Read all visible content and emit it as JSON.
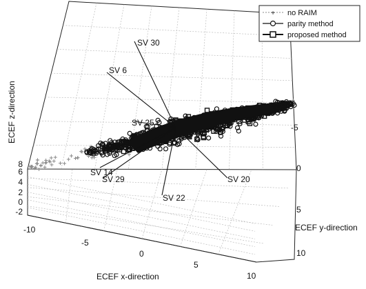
{
  "chart_data": {
    "type": "scatter",
    "projection": "3d",
    "title": "",
    "xlabel": "ECEF x-direction",
    "ylabel": "ECEF y-direction",
    "zlabel": "ECEF z-direction",
    "x_ticks": [
      "-10",
      "-5",
      "0",
      "5",
      "10"
    ],
    "y_ticks": [
      "-5",
      "0",
      "5",
      "10"
    ],
    "z_ticks": [
      "-2",
      "0",
      "2",
      "4",
      "6",
      "8"
    ],
    "xlim": [
      -12,
      12
    ],
    "ylim": [
      -8,
      11
    ],
    "zlim": [
      -2,
      9
    ],
    "grid": true,
    "legend_position": "top-right",
    "series": [
      {
        "name": "no RAIM",
        "marker": "plus",
        "color": "#8a8a8a"
      },
      {
        "name": "parity method",
        "marker": "circle",
        "color": "#111111"
      },
      {
        "name": "proposed method",
        "marker": "square",
        "color": "#111111"
      }
    ],
    "satellite_lines": [
      {
        "label": "SV 30"
      },
      {
        "label": "SV 6"
      },
      {
        "label": "SV 25"
      },
      {
        "label": "SV 20"
      },
      {
        "label": "SV 22"
      },
      {
        "label": "SV 14"
      },
      {
        "label": "SV 29"
      }
    ]
  }
}
